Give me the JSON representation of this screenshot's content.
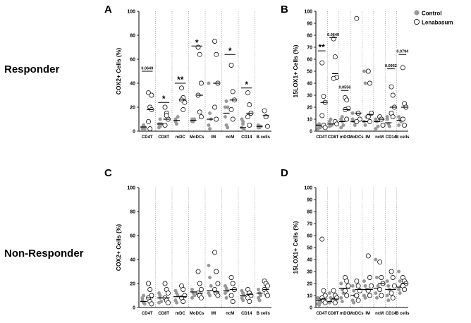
{
  "row_labels": [
    "Responder",
    "Non-Responder"
  ],
  "legend": {
    "control": {
      "label": "Control",
      "color": "#999999"
    },
    "lenabasum": {
      "label": "Lenabasum",
      "color": "#ffffff",
      "stroke": "#000000"
    }
  },
  "chart_data": [
    {
      "type": "scatter",
      "panel": "A",
      "ylabel": "COX2+ Cells (%)",
      "xlabel": "",
      "ylim": [
        0,
        100
      ],
      "yticks": [
        0,
        20,
        40,
        60,
        80,
        100
      ],
      "categories": [
        "CD4T",
        "CD8T",
        "mDC",
        "MoDCs",
        "IM",
        "ncM",
        "CD14",
        "B cells"
      ],
      "series": [
        {
          "name": "Control",
          "values": [
            [
              3,
              5,
              3,
              2,
              5,
              2
            ],
            [
              6,
              4,
              6,
              3,
              10
            ],
            [
              10,
              6,
              12,
              8
            ],
            [
              10,
              8,
              10,
              8
            ],
            [
              40,
              15,
              10,
              5,
              2
            ],
            [
              20,
              25,
              20,
              12,
              5,
              3
            ],
            [
              3,
              6,
              1,
              10,
              8
            ],
            [
              5,
              3,
              4,
              3
            ]
          ],
          "medians": [
            3.5,
            6,
            9,
            9,
            10,
            15,
            3,
            4
          ]
        },
        {
          "name": "Lenabasum",
          "values": [
            [
              32,
              20,
              18,
              8,
              2,
              30
            ],
            [
              20,
              15,
              10,
              5,
              13
            ],
            [
              36,
              28,
              24,
              26,
              18
            ],
            [
              70,
              64,
              40,
              30,
              16,
              12
            ],
            [
              75,
              64,
              40,
              20,
              10
            ],
            [
              55,
              33,
              26,
              18,
              10
            ],
            [
              32,
              22,
              15,
              12,
              5
            ],
            [
              17,
              12,
              4
            ]
          ],
          "medians": [
            18,
            10,
            26,
            30,
            40,
            26,
            15,
            13
          ]
        }
      ],
      "annotations": [
        {
          "category": "CD4T",
          "text": "0.0649",
          "y": 50
        },
        {
          "category": "CD8T",
          "text": "*",
          "y": 24
        },
        {
          "category": "mDC",
          "text": "**",
          "y": 40
        },
        {
          "category": "MoDCs",
          "text": "*",
          "y": 71
        },
        {
          "category": "ncM",
          "text": "*",
          "y": 64
        },
        {
          "category": "CD14",
          "text": "*",
          "y": 36
        }
      ]
    },
    {
      "type": "scatter",
      "panel": "B",
      "ylabel": "15LOX1+ Cells (%)",
      "xlabel": "",
      "ylim": [
        0,
        100
      ],
      "yticks": [
        0,
        10,
        20,
        30,
        40,
        50,
        60,
        70,
        80,
        90,
        100
      ],
      "categories": [
        "CD4T",
        "CD8T",
        "mDC",
        "MoDCs",
        "IM",
        "ncM",
        "CD14",
        "B cells"
      ],
      "series": [
        {
          "name": "Control",
          "values": [
            [
              5,
              4,
              3,
              2,
              6
            ],
            [
              8,
              5,
              5,
              4,
              10
            ],
            [
              10,
              8,
              5,
              3,
              12
            ],
            [
              15,
              8,
              5,
              10
            ],
            [
              50,
              40,
              12,
              8,
              5
            ],
            [
              10,
              8,
              4,
              2
            ],
            [
              12,
              6,
              4,
              10
            ],
            [
              12,
              10,
              8,
              5
            ]
          ],
          "medians": [
            5,
            6,
            8,
            8,
            8,
            8,
            7,
            9
          ]
        },
        {
          "name": "Lenabasum",
          "values": [
            [
              57,
              29,
              24,
              13,
              5,
              3
            ],
            [
              77,
              62,
              45,
              44,
              8,
              6
            ],
            [
              28,
              26,
              19,
              18,
              10
            ],
            [
              94,
              15,
              10,
              8
            ],
            [
              50,
              40,
              15,
              12,
              8
            ],
            [
              12,
              10,
              5
            ],
            [
              37,
              30,
              20,
              15,
              12
            ],
            [
              53,
              23,
              20,
              10,
              5
            ]
          ],
          "medians": [
            24,
            48,
            18,
            15,
            14,
            10,
            20,
            20
          ]
        }
      ],
      "annotations": [
        {
          "category": "CD4T",
          "text": "**",
          "y": 67
        },
        {
          "category": "CD8T",
          "text": "0.0649",
          "y": 78
        },
        {
          "category": "mDC",
          "text": "0.0556",
          "y": 34
        },
        {
          "category": "CD14",
          "text": "0.0952",
          "y": 52
        },
        {
          "category": "B cells",
          "text": "0.0794",
          "y": 64
        }
      ]
    },
    {
      "type": "scatter",
      "panel": "C",
      "ylabel": "COX2+ Cells (%)",
      "xlabel": "",
      "ylim": [
        0,
        100
      ],
      "yticks": [
        0,
        20,
        40,
        60,
        80,
        100
      ],
      "categories": [
        "CD4T",
        "CD8T",
        "mDC",
        "MoDCs",
        "IM",
        "ncM",
        "CD14",
        "B cells"
      ],
      "series": [
        {
          "name": "Control",
          "values": [
            [
              6,
              4,
              3,
              8,
              10
            ],
            [
              12,
              8,
              5,
              4,
              10
            ],
            [
              14,
              12,
              10,
              6,
              4
            ],
            [
              15,
              12,
              10,
              8
            ],
            [
              35,
              25,
              18,
              12,
              10
            ],
            [
              18,
              16,
              14,
              12,
              8
            ],
            [
              14,
              12,
              10,
              8,
              6
            ],
            [
              15,
              12,
              10,
              8,
              6
            ]
          ],
          "medians": [
            5,
            8,
            9,
            13,
            14,
            14,
            10,
            12
          ]
        },
        {
          "name": "Lenabasum",
          "values": [
            [
              20,
              15,
              10,
              8,
              5,
              3
            ],
            [
              20,
              15,
              12,
              8,
              6,
              4
            ],
            [
              18,
              15,
              10,
              8,
              5
            ],
            [
              30,
              20,
              15,
              12,
              10,
              8
            ],
            [
              46,
              30,
              20,
              15,
              12,
              10
            ],
            [
              25,
              20,
              15,
              10,
              5
            ],
            [
              15,
              12,
              10,
              8,
              5
            ],
            [
              22,
              20,
              18,
              15,
              12,
              10
            ]
          ],
          "medians": [
            8,
            8,
            9,
            12,
            13,
            15,
            11,
            15
          ]
        }
      ],
      "annotations": []
    },
    {
      "type": "scatter",
      "panel": "D",
      "ylabel": "15LOX1+ Cells (%)",
      "xlabel": "",
      "ylim": [
        0,
        100
      ],
      "yticks": [
        0,
        10,
        20,
        30,
        40,
        50,
        60,
        70,
        80,
        90,
        100
      ],
      "categories": [
        "CD4T",
        "CD8T",
        "mDC",
        "MoDCs",
        "IM",
        "ncM",
        "CD14",
        "B cells"
      ],
      "series": [
        {
          "name": "Control",
          "values": [
            [
              8,
              6,
              4,
              3,
              2
            ],
            [
              12,
              8,
              6,
              4
            ],
            [
              20,
              15,
              12,
              8,
              5
            ],
            [
              18,
              14,
              10,
              6,
              4
            ],
            [
              22,
              18,
              15,
              10,
              8
            ],
            [
              40,
              25,
              18,
              12,
              8
            ],
            [
              22,
              18,
              15,
              10,
              6
            ],
            [
              30,
              22,
              18,
              15,
              12
            ]
          ],
          "medians": [
            6,
            5,
            16,
            10,
            15,
            16,
            15,
            17
          ]
        },
        {
          "name": "Lenabasum",
          "values": [
            [
              57,
              14,
              10,
              8,
              6,
              4
            ],
            [
              14,
              10,
              8,
              6,
              4
            ],
            [
              25,
              22,
              18,
              14,
              10
            ],
            [
              22,
              18,
              14,
              10,
              6
            ],
            [
              43,
              25,
              18,
              14,
              10
            ],
            [
              38,
              25,
              20,
              15,
              10
            ],
            [
              30,
              25,
              18,
              12,
              8
            ],
            [
              25,
              22,
              20,
              18,
              15
            ]
          ],
          "medians": [
            7,
            7,
            16,
            15,
            15,
            20,
            15,
            20
          ]
        }
      ],
      "annotations": []
    }
  ]
}
